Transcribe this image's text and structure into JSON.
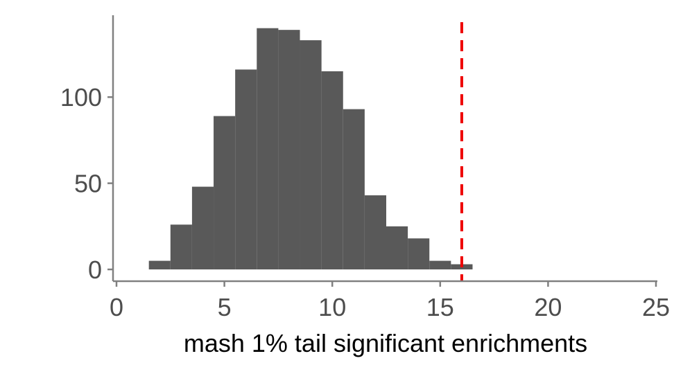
{
  "chart_data": {
    "type": "bar",
    "subtype": "histogram",
    "xlabel": "mash 1% tail significant enrichments",
    "ylabel": "",
    "title": "",
    "xlim": [
      0,
      25
    ],
    "ylim": [
      0,
      140
    ],
    "x_ticks": [
      "0",
      "5",
      "10",
      "15",
      "20",
      "25"
    ],
    "y_ticks": [
      "0",
      "50",
      "100"
    ],
    "bin_width": 1,
    "bins": [
      {
        "x0": 1.5,
        "x1": 2.5,
        "count": 5
      },
      {
        "x0": 2.5,
        "x1": 3.5,
        "count": 26
      },
      {
        "x0": 3.5,
        "x1": 4.5,
        "count": 48
      },
      {
        "x0": 4.5,
        "x1": 5.5,
        "count": 89
      },
      {
        "x0": 5.5,
        "x1": 6.5,
        "count": 116
      },
      {
        "x0": 6.5,
        "x1": 7.5,
        "count": 140
      },
      {
        "x0": 7.5,
        "x1": 8.5,
        "count": 139
      },
      {
        "x0": 8.5,
        "x1": 9.5,
        "count": 133
      },
      {
        "x0": 9.5,
        "x1": 10.5,
        "count": 115
      },
      {
        "x0": 10.5,
        "x1": 11.5,
        "count": 93
      },
      {
        "x0": 11.5,
        "x1": 12.5,
        "count": 43
      },
      {
        "x0": 12.5,
        "x1": 13.5,
        "count": 25
      },
      {
        "x0": 13.5,
        "x1": 14.5,
        "count": 18
      },
      {
        "x0": 14.5,
        "x1": 15.5,
        "count": 5
      },
      {
        "x0": 15.5,
        "x1": 16.5,
        "count": 3
      }
    ],
    "reference_line": {
      "x": 16,
      "style": "dashed",
      "color": "#ee0000"
    },
    "bar_color": "#595959",
    "axis_color": "#808080",
    "grid": false,
    "legend": "none"
  }
}
